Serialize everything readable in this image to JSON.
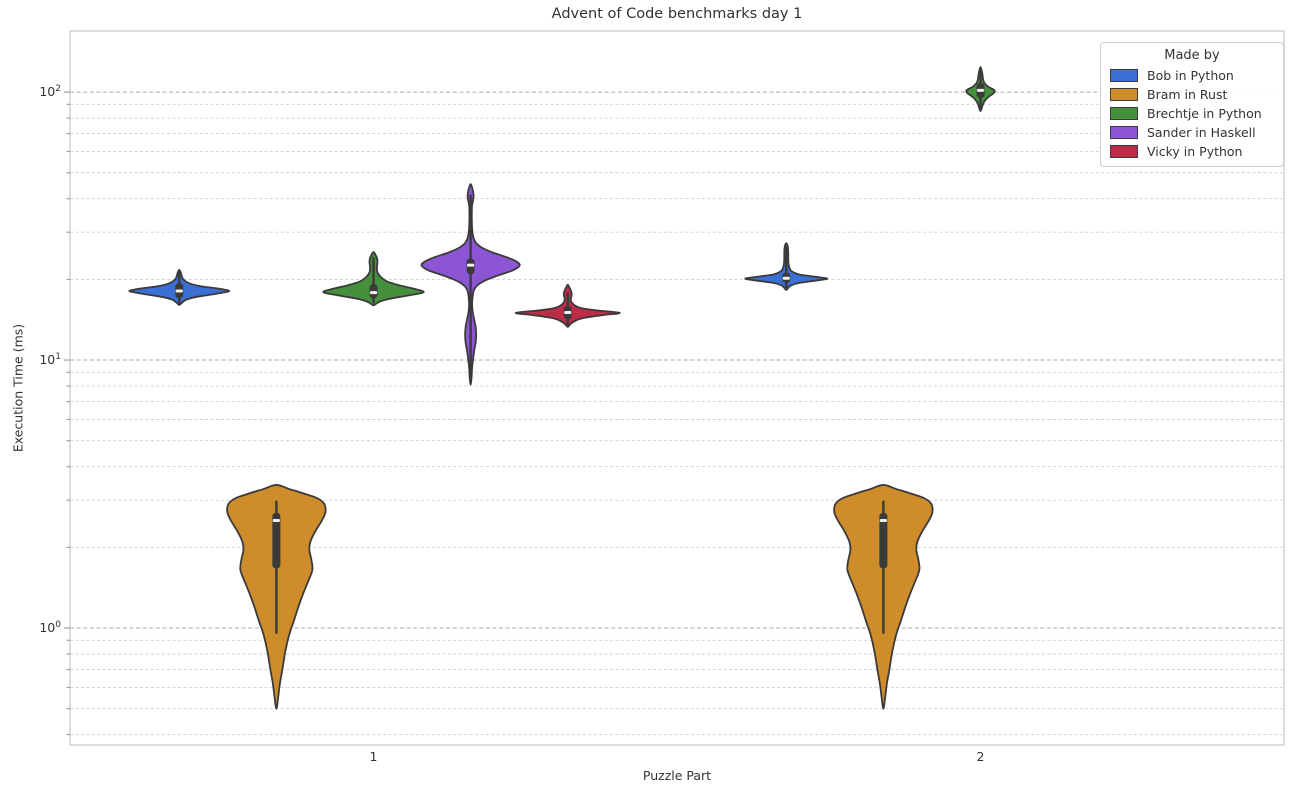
{
  "chart_data": {
    "type": "violin",
    "title": "Advent of Code benchmarks day 1",
    "xlabel": "Puzzle Part",
    "ylabel": "Execution Time (ms)",
    "x_categories": [
      "1",
      "2"
    ],
    "yscale": "log",
    "ylim": [
      0.366,
      169
    ],
    "xlim": [
      -0.5,
      1.5
    ],
    "grid": "major and minor horizontal dashed gridlines",
    "legend": {
      "title": "Made by",
      "position": "upper right"
    },
    "y_major_ticks": [
      {
        "value": 1,
        "base": "10",
        "exp": "0"
      },
      {
        "value": 10,
        "base": "10",
        "exp": "1"
      },
      {
        "value": 100,
        "base": "10",
        "exp": "2"
      }
    ],
    "y_minor_tick_values": [
      0.4,
      0.5,
      0.6,
      0.7,
      0.8,
      0.9,
      2,
      3,
      4,
      5,
      6,
      7,
      8,
      9,
      20,
      30,
      40,
      50,
      60,
      70,
      80,
      90
    ],
    "dodge_offset_units": [
      -0.32,
      -0.16,
      0,
      0.16,
      0.32
    ],
    "edge_color": "#3a3a3a",
    "series": [
      {
        "name": "Bob in Python",
        "color": "#3b6fd4",
        "violins": [
          {
            "part": "1",
            "category_index": 0,
            "hue_index": 0,
            "median": 18.1,
            "q1": 17.05,
            "q3": 19.35,
            "whisker_low": 16.35,
            "whisker_high": 21.3,
            "min": 16.05,
            "max": 21.7,
            "profile": [
              [
                21.7,
                0
              ],
              [
                21.2,
                1.5
              ],
              [
                20.6,
                2.5
              ],
              [
                20,
                4
              ],
              [
                19.4,
                9
              ],
              [
                18.9,
                20
              ],
              [
                18.5,
                38
              ],
              [
                18.1,
                50
              ],
              [
                17.7,
                38
              ],
              [
                17.2,
                17
              ],
              [
                16.8,
                7
              ],
              [
                16.4,
                3
              ],
              [
                16.05,
                0
              ]
            ]
          },
          {
            "part": "2",
            "category_index": 1,
            "hue_index": 0,
            "median": 20.2,
            "q1": 19.4,
            "q3": 21.2,
            "whisker_low": 18.7,
            "whisker_high": 26.3,
            "min": 18.25,
            "max": 27.3,
            "profile": [
              [
                27.3,
                0
              ],
              [
                26.8,
                1.2
              ],
              [
                26,
                1.8
              ],
              [
                25,
                2
              ],
              [
                24,
                2
              ],
              [
                23,
                2.2
              ],
              [
                22.2,
                3
              ],
              [
                21.5,
                5
              ],
              [
                20.9,
                12
              ],
              [
                20.5,
                27
              ],
              [
                20.15,
                41
              ],
              [
                19.8,
                30
              ],
              [
                19.4,
                13
              ],
              [
                19,
                5
              ],
              [
                18.6,
                2
              ],
              [
                18.25,
                0
              ]
            ]
          }
        ]
      },
      {
        "name": "Bram in Rust",
        "color": "#ce8c2b",
        "violins": [
          {
            "part": "1",
            "category_index": 0,
            "hue_index": 1,
            "median": 2.52,
            "q1": 1.67,
            "q3": 2.69,
            "whisker_low": 0.96,
            "whisker_high": 2.96,
            "min": 0.5,
            "max": 3.42,
            "profile": [
              [
                3.42,
                0
              ],
              [
                3.3,
                13
              ],
              [
                3.18,
                27
              ],
              [
                3.05,
                41
              ],
              [
                2.9,
                48
              ],
              [
                2.7,
                49
              ],
              [
                2.5,
                45
              ],
              [
                2.3,
                39
              ],
              [
                2.1,
                34
              ],
              [
                1.95,
                33
              ],
              [
                1.8,
                35
              ],
              [
                1.65,
                36
              ],
              [
                1.5,
                32
              ],
              [
                1.35,
                27
              ],
              [
                1.2,
                22
              ],
              [
                1.05,
                17
              ],
              [
                0.95,
                13
              ],
              [
                0.82,
                9
              ],
              [
                0.7,
                6
              ],
              [
                0.62,
                3.5
              ],
              [
                0.56,
                2
              ],
              [
                0.5,
                0
              ]
            ]
          },
          {
            "part": "2",
            "category_index": 1,
            "hue_index": 1,
            "median": 2.52,
            "q1": 1.67,
            "q3": 2.69,
            "whisker_low": 0.96,
            "whisker_high": 2.96,
            "min": 0.5,
            "max": 3.42,
            "profile": [
              [
                3.42,
                0
              ],
              [
                3.3,
                13
              ],
              [
                3.18,
                27
              ],
              [
                3.05,
                41
              ],
              [
                2.9,
                48
              ],
              [
                2.7,
                49
              ],
              [
                2.5,
                45
              ],
              [
                2.3,
                39
              ],
              [
                2.1,
                34
              ],
              [
                1.95,
                33
              ],
              [
                1.8,
                35
              ],
              [
                1.65,
                36
              ],
              [
                1.5,
                32
              ],
              [
                1.35,
                27
              ],
              [
                1.2,
                22
              ],
              [
                1.05,
                17
              ],
              [
                0.95,
                13
              ],
              [
                0.82,
                9
              ],
              [
                0.7,
                6
              ],
              [
                0.62,
                3.5
              ],
              [
                0.56,
                2
              ],
              [
                0.5,
                0
              ]
            ]
          }
        ]
      },
      {
        "name": "Brechtje in Python",
        "color": "#45903c",
        "violins": [
          {
            "part": "1",
            "category_index": 0,
            "hue_index": 2,
            "median": 17.85,
            "q1": 17.0,
            "q3": 19.2,
            "whisker_low": 16.4,
            "whisker_high": 24.0,
            "min": 16.0,
            "max": 25.3,
            "profile": [
              [
                25.3,
                0
              ],
              [
                24.7,
                2
              ],
              [
                24,
                3.5
              ],
              [
                23.2,
                4
              ],
              [
                22.4,
                3.5
              ],
              [
                21.6,
                3.5
              ],
              [
                20.9,
                5
              ],
              [
                20.3,
                8
              ],
              [
                19.6,
                14
              ],
              [
                19,
                26
              ],
              [
                18.4,
                42
              ],
              [
                17.9,
                50
              ],
              [
                17.4,
                34
              ],
              [
                16.9,
                15
              ],
              [
                16.5,
                6
              ],
              [
                16.2,
                2.5
              ],
              [
                16,
                0
              ]
            ]
          },
          {
            "part": "2",
            "category_index": 1,
            "hue_index": 2,
            "median": 101.5,
            "q1": 95,
            "q3": 108,
            "whisker_low": 86,
            "whisker_high": 121,
            "min": 85,
            "max": 124,
            "profile": [
              [
                124,
                0
              ],
              [
                120,
                1.2
              ],
              [
                116,
                2
              ],
              [
                112,
                2.5
              ],
              [
                108,
                4
              ],
              [
                104.5,
                8
              ],
              [
                101.5,
                14
              ],
              [
                99,
                13
              ],
              [
                96,
                8
              ],
              [
                93,
                4.5
              ],
              [
                90,
                2.5
              ],
              [
                87,
                1.2
              ],
              [
                85,
                0
              ]
            ]
          }
        ]
      },
      {
        "name": "Sander in Haskell",
        "color": "#8c55d4",
        "violins": [
          {
            "part": "1",
            "category_index": 0,
            "hue_index": 3,
            "median": 22.6,
            "q1": 20.9,
            "q3": 23.9,
            "whisker_low": 8.5,
            "whisker_high": 41.0,
            "min": 8.1,
            "max": 45.4,
            "profile": [
              [
                45.4,
                0
              ],
              [
                44,
                1.5
              ],
              [
                42.5,
                2.5
              ],
              [
                41,
                3
              ],
              [
                39.5,
                2.5
              ],
              [
                38,
                1.5
              ],
              [
                36,
                1.2
              ],
              [
                33.5,
                1.2
              ],
              [
                31,
                1.5
              ],
              [
                29,
                2.5
              ],
              [
                27.5,
                5
              ],
              [
                26.3,
                11
              ],
              [
                25.2,
                22
              ],
              [
                24.2,
                36
              ],
              [
                23.3,
                46
              ],
              [
                22.5,
                49
              ],
              [
                21.6,
                42
              ],
              [
                20.6,
                26
              ],
              [
                19.7,
                13
              ],
              [
                18.9,
                6
              ],
              [
                18.1,
                3
              ],
              [
                17.2,
                2
              ],
              [
                16.2,
                1.5
              ],
              [
                15.2,
                2
              ],
              [
                14.2,
                3.5
              ],
              [
                13.3,
                5
              ],
              [
                12.4,
                5.5
              ],
              [
                11.6,
                5
              ],
              [
                10.8,
                3.5
              ],
              [
                10.1,
                2.5
              ],
              [
                9.4,
                1.5
              ],
              [
                8.7,
                1
              ],
              [
                8.1,
                0
              ]
            ]
          }
        ]
      },
      {
        "name": "Vicky in Python",
        "color": "#bf2c48",
        "violins": [
          {
            "part": "1",
            "category_index": 0,
            "hue_index": 4,
            "median": 15.05,
            "q1": 14.2,
            "q3": 15.9,
            "whisker_low": 13.5,
            "whisker_high": 17.8,
            "min": 13.3,
            "max": 19.1,
            "profile": [
              [
                19.1,
                0
              ],
              [
                18.7,
                1.5
              ],
              [
                18.2,
                3
              ],
              [
                17.7,
                4
              ],
              [
                17.2,
                3.5
              ],
              [
                16.8,
                3
              ],
              [
                16.4,
                4
              ],
              [
                16,
                7
              ],
              [
                15.6,
                14
              ],
              [
                15.3,
                30
              ],
              [
                15,
                52
              ],
              [
                14.7,
                34
              ],
              [
                14.3,
                14
              ],
              [
                13.9,
                6
              ],
              [
                13.6,
                2.5
              ],
              [
                13.3,
                0
              ]
            ]
          }
        ]
      }
    ]
  }
}
